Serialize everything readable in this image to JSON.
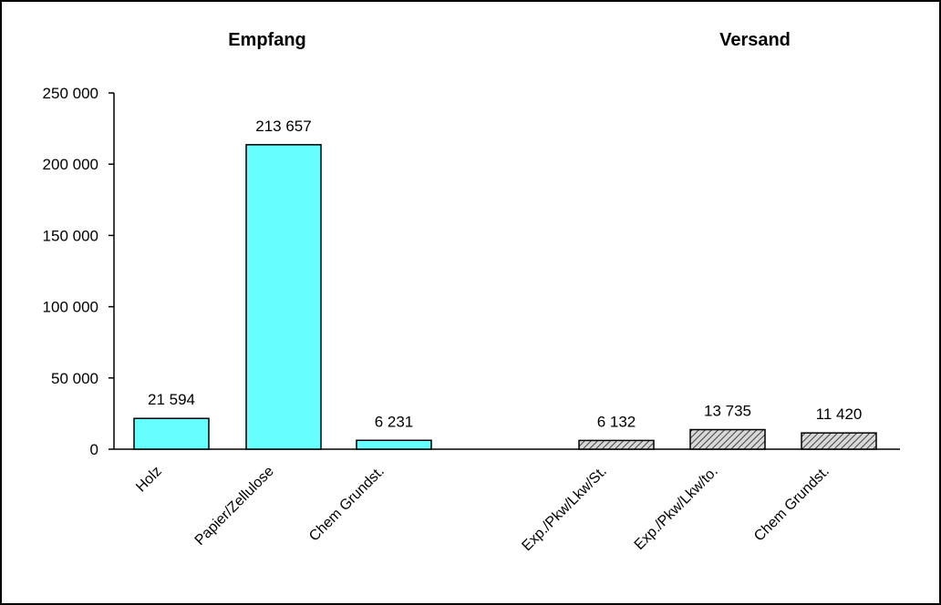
{
  "chart_data": {
    "type": "bar",
    "group_titles": [
      "Empfang",
      "Versand"
    ],
    "categories": [
      "Holz",
      "Papier/Zellulose",
      "Chem Grundst.",
      "Exp./Pkw/Lkw/St.",
      "Exp./Pkw/Lkw/to.",
      "Chem Grundst."
    ],
    "series": [
      {
        "values": [
          21594,
          213657,
          6231,
          null,
          null,
          null
        ],
        "color": "#66ffff",
        "pattern": "solid"
      },
      {
        "values": [
          null,
          null,
          null,
          6132,
          13735,
          11420
        ],
        "color": "#b0b0b0",
        "pattern": "hatched"
      }
    ],
    "data_labels": [
      "21 594",
      "213 657",
      "6 231",
      "6 132",
      "13 735",
      "11 420"
    ],
    "y_ticks": [
      0,
      50000,
      100000,
      150000,
      200000,
      250000
    ],
    "y_tick_labels": [
      "0",
      "50 000",
      "100 000",
      "150 000",
      "200 000",
      "250 000"
    ],
    "ylim": [
      0,
      250000
    ],
    "grid": false,
    "legend": "none"
  }
}
